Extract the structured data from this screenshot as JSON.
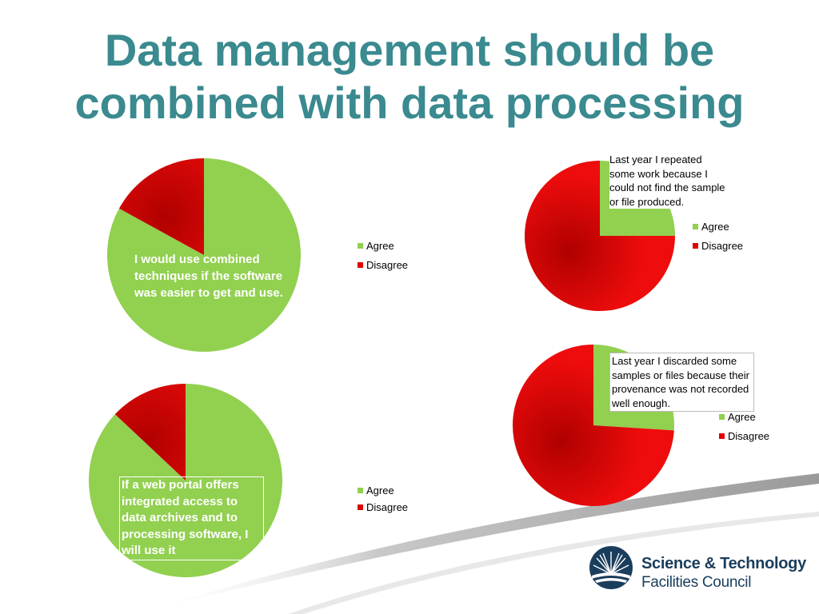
{
  "slide": {
    "title": "Data management should be combined with data processing"
  },
  "colors": {
    "agree": "#92d050",
    "disagree": "#e00000",
    "title": "#3a8a8f",
    "logo": "#1a3d5c"
  },
  "icons": {
    "logo": "stfc-sunburst-logo-icon"
  },
  "logo": {
    "line1": "Science & Technology",
    "line2": "Facilities Council"
  },
  "chart_data": [
    {
      "type": "pie",
      "title": "I would use combined techniques if the software was easier to get and use.",
      "categories": [
        "Agree",
        "Disagree"
      ],
      "values": [
        83,
        17
      ],
      "legend_position": "right"
    },
    {
      "type": "pie",
      "title": "Last year I repeated some work because I could not find the sample or file produced.",
      "categories": [
        "Agree",
        "Disagree"
      ],
      "values": [
        25,
        75
      ],
      "legend_position": "right"
    },
    {
      "type": "pie",
      "title": "Last year I discarded some samples or files because their provenance was not recorded well enough.",
      "categories": [
        "Agree",
        "Disagree"
      ],
      "values": [
        26,
        74
      ],
      "legend_position": "right"
    },
    {
      "type": "pie",
      "title": "If a web portal offers integrated access to data archives and to processing software, I will use it",
      "categories": [
        "Agree",
        "Disagree"
      ],
      "values": [
        87,
        13
      ],
      "legend_position": "right"
    }
  ]
}
